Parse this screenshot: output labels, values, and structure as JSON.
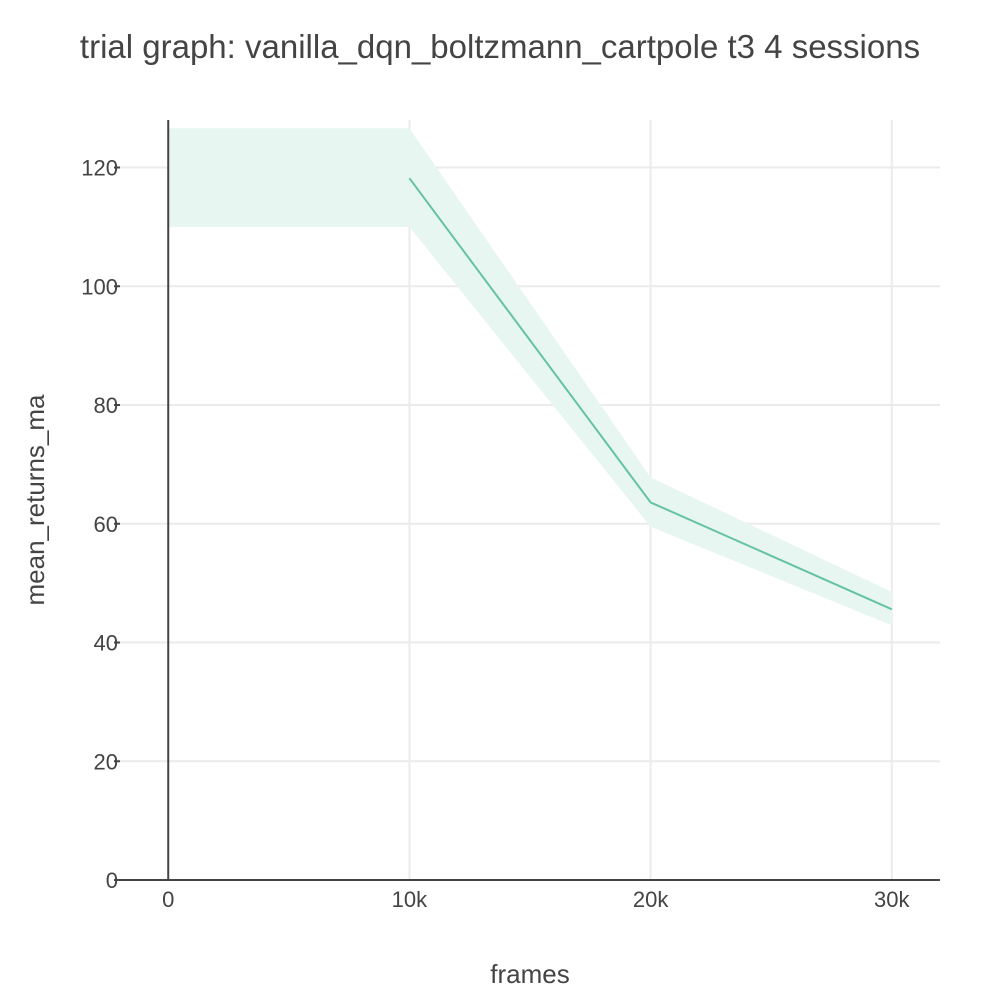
{
  "chart_data": {
    "type": "line",
    "title": "trial graph: vanilla_dqn_boltzmann_cartpole t3 4 sessions",
    "xlabel": "frames",
    "ylabel": "mean_returns_ma",
    "xlim": [
      -2000,
      32000
    ],
    "ylim": [
      0,
      128
    ],
    "x_ticks": [
      0,
      10000,
      20000,
      30000
    ],
    "x_tick_labels": [
      "0",
      "10k",
      "20k",
      "30k"
    ],
    "y_ticks": [
      0,
      20,
      40,
      60,
      80,
      100,
      120
    ],
    "y_tick_labels": [
      "0",
      "20",
      "40",
      "60",
      "80",
      "100",
      "120"
    ],
    "grid": true,
    "series": [
      {
        "x": [
          0,
          10000,
          20000,
          30000
        ],
        "y": [
          null,
          118.2,
          63.6,
          45.6
        ],
        "upper": [
          126.6,
          126.6,
          67.8,
          48.5
        ],
        "lower": [
          110.0,
          110.0,
          59.5,
          42.9
        ],
        "color": "#66c2a5",
        "band_color": "#e7f6f1"
      }
    ]
  }
}
